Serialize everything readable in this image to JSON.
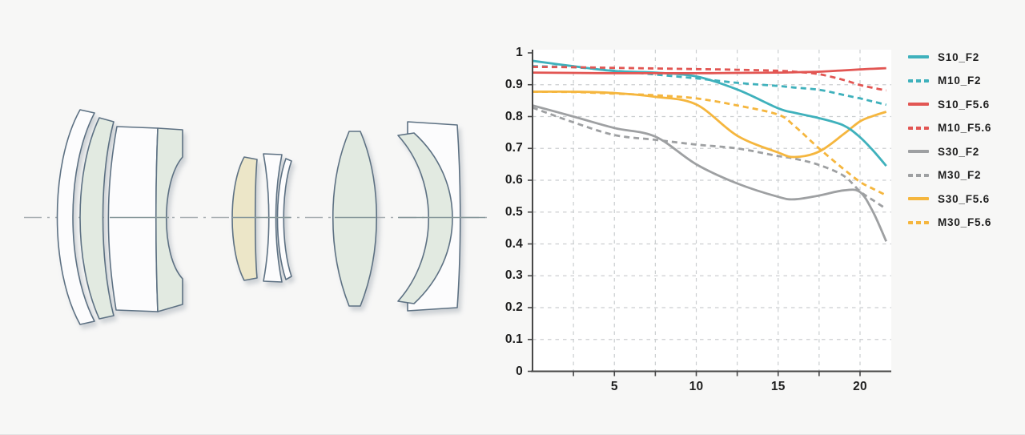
{
  "page": {
    "background": "#f7f7f6"
  },
  "lens_diagram": {
    "colors": {
      "outline": "#5d7183",
      "glass_white": "#fcfcfd",
      "glass_green": "#e2eae1",
      "glass_amber": "#ece6c8",
      "optical_axis": "#a9b0b3",
      "optical_axis_solid": "#87989b",
      "shadow": "#9aa3ad"
    },
    "elements": [
      {
        "id": "element-1",
        "glass": "white"
      },
      {
        "id": "element-2",
        "glass": "green"
      },
      {
        "id": "element-3a",
        "glass": "white"
      },
      {
        "id": "element-3b",
        "glass": "green"
      },
      {
        "id": "element-4",
        "glass": "amber"
      },
      {
        "id": "element-5",
        "glass": "white"
      },
      {
        "id": "element-6",
        "glass": "white"
      },
      {
        "id": "element-7",
        "glass": "green"
      },
      {
        "id": "element-8",
        "glass": "green"
      },
      {
        "id": "element-9",
        "glass": "white"
      }
    ]
  },
  "chart_data": {
    "type": "line",
    "title": "",
    "xlabel": "",
    "ylabel": "",
    "xlim": [
      0,
      21.6
    ],
    "ylim": [
      0,
      1
    ],
    "grid": true,
    "legend_position": "right",
    "plot_bg": "#ffffff",
    "axis_color": "#474747",
    "grid_color": "#cbced0",
    "text_color": "#1f1f1f",
    "x": [
      0,
      2.5,
      5,
      7.5,
      10,
      12.5,
      15,
      16,
      17.5,
      19,
      20,
      20.8,
      21.6
    ],
    "grid_x": [
      2.5,
      5,
      7.5,
      10,
      12.5,
      15,
      17.5,
      20
    ],
    "grid_y": [
      0.1,
      0.2,
      0.3,
      0.4,
      0.5,
      0.6,
      0.7,
      0.8,
      0.9
    ],
    "ytick_values": [
      1,
      0.9,
      0.8,
      0.7,
      0.6,
      0.5,
      0.4,
      0.3,
      0.2,
      0.1,
      0
    ],
    "ytick_labels": [
      "1",
      "0.9",
      "0.8",
      "0.7",
      "0.6",
      "0.5",
      "0.4",
      "0.3",
      "0.2",
      "0.1",
      "0"
    ],
    "xtick_values": [
      5,
      10,
      15,
      20
    ],
    "xtick_labels": [
      "5",
      "10",
      "15",
      "20"
    ],
    "series": [
      {
        "name": "S10_F2",
        "color": "#3fb1bc",
        "style": "solid",
        "values": [
          0.975,
          0.958,
          0.943,
          0.938,
          0.926,
          0.885,
          0.826,
          0.812,
          0.795,
          0.772,
          0.735,
          0.693,
          0.645
        ]
      },
      {
        "name": "M10_F2",
        "color": "#3fb1bc",
        "style": "dashed",
        "values": [
          0.958,
          0.955,
          0.944,
          0.932,
          0.92,
          0.906,
          0.896,
          0.891,
          0.884,
          0.868,
          0.857,
          0.847,
          0.837
        ]
      },
      {
        "name": "S10_F5.6",
        "color": "#e25653",
        "style": "solid",
        "values": [
          0.938,
          0.937,
          0.936,
          0.936,
          0.936,
          0.937,
          0.938,
          0.939,
          0.941,
          0.945,
          0.948,
          0.95,
          0.952
        ]
      },
      {
        "name": "M10_F5.6",
        "color": "#e25653",
        "style": "dashed",
        "values": [
          0.956,
          0.955,
          0.953,
          0.951,
          0.949,
          0.947,
          0.944,
          0.941,
          0.933,
          0.915,
          0.899,
          0.89,
          0.882
        ]
      },
      {
        "name": "S30_F2",
        "color": "#9ea0a2",
        "style": "solid",
        "values": [
          0.835,
          0.8,
          0.764,
          0.737,
          0.65,
          0.59,
          0.548,
          0.54,
          0.552,
          0.568,
          0.563,
          0.5,
          0.408
        ]
      },
      {
        "name": "M30_F2",
        "color": "#9ea0a2",
        "style": "dashed",
        "values": [
          0.828,
          0.782,
          0.742,
          0.727,
          0.712,
          0.7,
          0.676,
          0.668,
          0.648,
          0.614,
          0.565,
          0.537,
          0.51
        ]
      },
      {
        "name": "S30_F5.6",
        "color": "#f5b63e",
        "style": "solid",
        "values": [
          0.878,
          0.878,
          0.874,
          0.862,
          0.838,
          0.74,
          0.687,
          0.673,
          0.69,
          0.745,
          0.785,
          0.802,
          0.815
        ]
      },
      {
        "name": "M30_F5.6",
        "color": "#f5b63e",
        "style": "dashed",
        "values": [
          0.878,
          0.877,
          0.872,
          0.867,
          0.857,
          0.835,
          0.806,
          0.77,
          0.7,
          0.635,
          0.595,
          0.573,
          0.553
        ]
      }
    ]
  }
}
